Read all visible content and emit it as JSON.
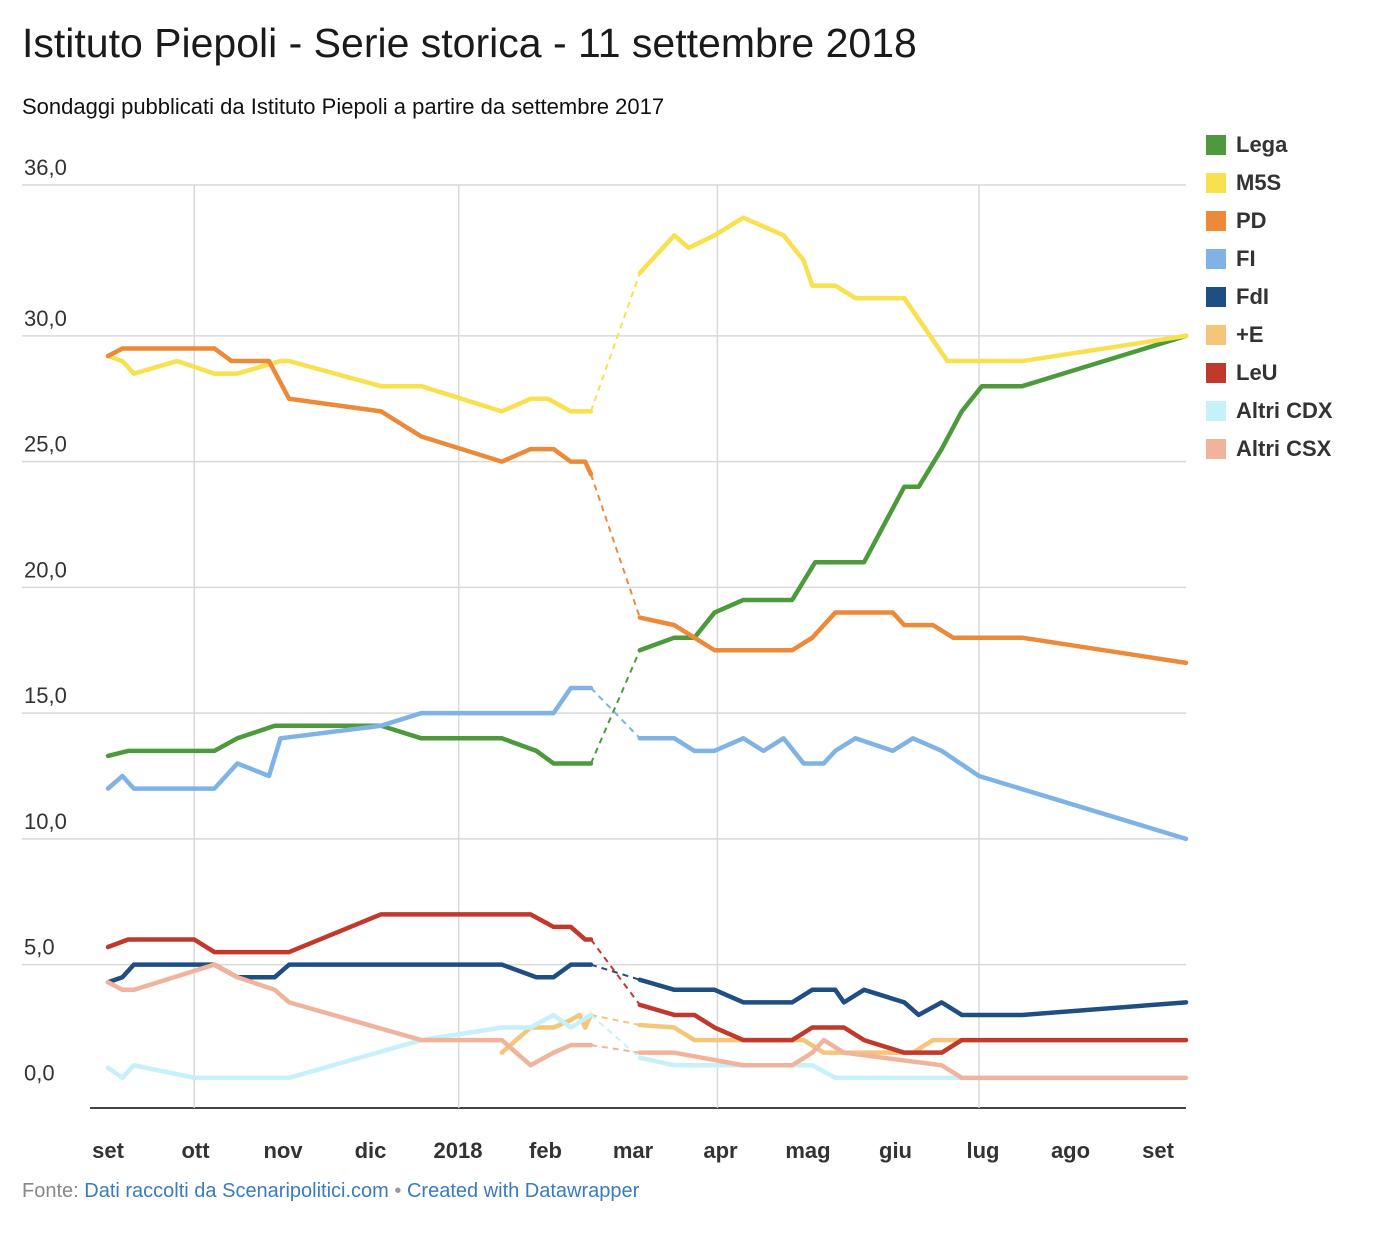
{
  "title": "Istituto Piepoli - Serie storica - 11 settembre 2018",
  "subtitle": "Sondaggi pubblicati da Istituto Piepoli a partire da settembre 2017",
  "footer": {
    "prefix": "Fonte:",
    "source_link": "Dati raccolti da Scenaripolitici.com",
    "separator": "•",
    "credit_link": "Created with Datawrapper"
  },
  "chart_data": {
    "type": "line",
    "title": "Istituto Piepoli - Serie storica - 11 settembre 2018",
    "xlabel": "",
    "ylabel": "",
    "ylim": [
      -0.7,
      36.0
    ],
    "xlim": [
      "2017-09-01",
      "2018-09-11"
    ],
    "grid": true,
    "legend_position": "right",
    "y_ticks": [
      "36,0",
      "30,0",
      "25,0",
      "20,0",
      "15,0",
      "10,0",
      "5,0",
      "0,0"
    ],
    "y_tick_values": [
      36,
      30,
      25,
      20,
      15,
      10,
      5,
      0
    ],
    "x_ticks": [
      "set",
      "ott",
      "nov",
      "dic",
      "2018",
      "feb",
      "mar",
      "apr",
      "mag",
      "giu",
      "lug",
      "ago",
      "set"
    ],
    "x_gridlines": [
      "2017-10-01",
      "2018-01-01",
      "2018-04-01",
      "2018-07-01"
    ],
    "gap": [
      "2018-02-16",
      "2018-03-05"
    ],
    "series": [
      {
        "name": "Lega",
        "color": "#4c9a3b",
        "points": [
          [
            "2017-09-01",
            13.3
          ],
          [
            "2017-09-08",
            13.5
          ],
          [
            "2017-10-08",
            13.5
          ],
          [
            "2017-10-16",
            14.0
          ],
          [
            "2017-10-29",
            14.5
          ],
          [
            "2017-12-05",
            14.5
          ],
          [
            "2017-12-19",
            14.0
          ],
          [
            "2018-01-16",
            14.0
          ],
          [
            "2018-01-28",
            13.5
          ],
          [
            "2018-02-03",
            13.0
          ],
          [
            "2018-02-16",
            13.0
          ],
          [
            "2018-03-05",
            17.5
          ],
          [
            "2018-03-17",
            18.0
          ],
          [
            "2018-03-24",
            18.0
          ],
          [
            "2018-03-31",
            19.0
          ],
          [
            "2018-04-10",
            19.5
          ],
          [
            "2018-04-27",
            19.5
          ],
          [
            "2018-05-05",
            21.0
          ],
          [
            "2018-05-22",
            21.0
          ],
          [
            "2018-06-05",
            24.0
          ],
          [
            "2018-06-10",
            24.0
          ],
          [
            "2018-06-18",
            25.5
          ],
          [
            "2018-06-25",
            27.0
          ],
          [
            "2018-07-02",
            28.0
          ],
          [
            "2018-07-16",
            28.0
          ],
          [
            "2018-09-11",
            30.0
          ]
        ]
      },
      {
        "name": "M5S",
        "color": "#f8e04e",
        "points": [
          [
            "2017-09-01",
            29.2
          ],
          [
            "2017-09-06",
            29.0
          ],
          [
            "2017-09-10",
            28.5
          ],
          [
            "2017-09-25",
            29.0
          ],
          [
            "2017-10-08",
            28.5
          ],
          [
            "2017-10-16",
            28.5
          ],
          [
            "2017-10-31",
            29.0
          ],
          [
            "2017-11-03",
            29.0
          ],
          [
            "2017-12-05",
            28.0
          ],
          [
            "2017-12-19",
            28.0
          ],
          [
            "2018-01-16",
            27.0
          ],
          [
            "2018-01-26",
            27.5
          ],
          [
            "2018-02-01",
            27.5
          ],
          [
            "2018-02-09",
            27.0
          ],
          [
            "2018-02-16",
            27.0
          ],
          [
            "2018-03-05",
            32.5
          ],
          [
            "2018-03-17",
            34.0
          ],
          [
            "2018-03-22",
            33.5
          ],
          [
            "2018-03-31",
            34.0
          ],
          [
            "2018-04-10",
            34.7
          ],
          [
            "2018-04-24",
            34.0
          ],
          [
            "2018-05-01",
            33.0
          ],
          [
            "2018-05-04",
            32.0
          ],
          [
            "2018-05-12",
            32.0
          ],
          [
            "2018-05-19",
            31.5
          ],
          [
            "2018-06-05",
            31.5
          ],
          [
            "2018-06-20",
            29.0
          ],
          [
            "2018-07-01",
            29.0
          ],
          [
            "2018-07-16",
            29.0
          ],
          [
            "2018-09-11",
            30.0
          ]
        ]
      },
      {
        "name": "PD",
        "color": "#ec8a3a",
        "points": [
          [
            "2017-09-01",
            29.2
          ],
          [
            "2017-09-06",
            29.5
          ],
          [
            "2017-09-10",
            29.5
          ],
          [
            "2017-10-08",
            29.5
          ],
          [
            "2017-10-14",
            29.0
          ],
          [
            "2017-10-27",
            29.0
          ],
          [
            "2017-11-03",
            27.5
          ],
          [
            "2017-12-05",
            27.0
          ],
          [
            "2017-12-19",
            26.0
          ],
          [
            "2018-01-16",
            25.0
          ],
          [
            "2018-01-26",
            25.5
          ],
          [
            "2018-02-03",
            25.5
          ],
          [
            "2018-02-09",
            25.0
          ],
          [
            "2018-02-14",
            25.0
          ],
          [
            "2018-02-16",
            24.5
          ],
          [
            "2018-03-05",
            18.8
          ],
          [
            "2018-03-17",
            18.5
          ],
          [
            "2018-03-24",
            18.0
          ],
          [
            "2018-03-31",
            17.5
          ],
          [
            "2018-04-10",
            17.5
          ],
          [
            "2018-04-27",
            17.5
          ],
          [
            "2018-05-04",
            18.0
          ],
          [
            "2018-05-08",
            18.5
          ],
          [
            "2018-05-12",
            19.0
          ],
          [
            "2018-06-01",
            19.0
          ],
          [
            "2018-06-05",
            18.5
          ],
          [
            "2018-06-15",
            18.5
          ],
          [
            "2018-06-22",
            18.0
          ],
          [
            "2018-07-16",
            18.0
          ],
          [
            "2018-09-11",
            17.0
          ]
        ]
      },
      {
        "name": "FI",
        "color": "#7fb2e5",
        "points": [
          [
            "2017-09-01",
            12.0
          ],
          [
            "2017-09-06",
            12.5
          ],
          [
            "2017-09-10",
            12.0
          ],
          [
            "2017-10-08",
            12.0
          ],
          [
            "2017-10-16",
            13.0
          ],
          [
            "2017-10-27",
            12.5
          ],
          [
            "2017-10-31",
            14.0
          ],
          [
            "2017-12-05",
            14.5
          ],
          [
            "2017-12-19",
            15.0
          ],
          [
            "2018-02-03",
            15.0
          ],
          [
            "2018-02-09",
            16.0
          ],
          [
            "2018-02-16",
            16.0
          ],
          [
            "2018-03-05",
            14.0
          ],
          [
            "2018-03-17",
            14.0
          ],
          [
            "2018-03-24",
            13.5
          ],
          [
            "2018-03-31",
            13.5
          ],
          [
            "2018-04-10",
            14.0
          ],
          [
            "2018-04-17",
            13.5
          ],
          [
            "2018-04-24",
            14.0
          ],
          [
            "2018-05-01",
            13.0
          ],
          [
            "2018-05-08",
            13.0
          ],
          [
            "2018-05-12",
            13.5
          ],
          [
            "2018-05-19",
            14.0
          ],
          [
            "2018-06-01",
            13.5
          ],
          [
            "2018-06-08",
            14.0
          ],
          [
            "2018-06-18",
            13.5
          ],
          [
            "2018-07-01",
            12.5
          ],
          [
            "2018-09-11",
            10.0
          ]
        ]
      },
      {
        "name": "FdI",
        "color": "#1f4e85",
        "points": [
          [
            "2017-09-01",
            4.3
          ],
          [
            "2017-09-06",
            4.5
          ],
          [
            "2017-09-10",
            5.0
          ],
          [
            "2017-10-08",
            5.0
          ],
          [
            "2017-10-16",
            4.5
          ],
          [
            "2017-10-29",
            4.5
          ],
          [
            "2017-11-03",
            5.0
          ],
          [
            "2018-01-16",
            5.0
          ],
          [
            "2018-01-28",
            4.5
          ],
          [
            "2018-02-03",
            4.5
          ],
          [
            "2018-02-09",
            5.0
          ],
          [
            "2018-02-16",
            5.0
          ],
          [
            "2018-03-05",
            4.4
          ],
          [
            "2018-03-17",
            4.0
          ],
          [
            "2018-03-31",
            4.0
          ],
          [
            "2018-04-10",
            3.5
          ],
          [
            "2018-04-27",
            3.5
          ],
          [
            "2018-05-04",
            4.0
          ],
          [
            "2018-05-12",
            4.0
          ],
          [
            "2018-05-15",
            3.5
          ],
          [
            "2018-05-22",
            4.0
          ],
          [
            "2018-06-05",
            3.5
          ],
          [
            "2018-06-10",
            3.0
          ],
          [
            "2018-06-18",
            3.5
          ],
          [
            "2018-06-25",
            3.0
          ],
          [
            "2018-07-16",
            3.0
          ],
          [
            "2018-09-11",
            3.5
          ]
        ]
      },
      {
        "name": "+E",
        "color": "#f5c57a",
        "points": [
          [
            "2018-01-16",
            1.5
          ],
          [
            "2018-01-26",
            2.5
          ],
          [
            "2018-02-03",
            2.5
          ],
          [
            "2018-02-09",
            2.8
          ],
          [
            "2018-02-12",
            3.0
          ],
          [
            "2018-02-14",
            2.5
          ],
          [
            "2018-02-16",
            3.0
          ],
          [
            "2018-03-05",
            2.6
          ],
          [
            "2018-03-17",
            2.5
          ],
          [
            "2018-03-24",
            2.0
          ],
          [
            "2018-04-27",
            2.0
          ],
          [
            "2018-05-01",
            2.0
          ],
          [
            "2018-05-08",
            1.5
          ],
          [
            "2018-06-08",
            1.5
          ],
          [
            "2018-06-15",
            2.0
          ],
          [
            "2018-06-25",
            2.0
          ]
        ]
      },
      {
        "name": "LeU",
        "color": "#c0392b",
        "points": [
          [
            "2017-09-01",
            5.7
          ],
          [
            "2017-09-08",
            6.0
          ],
          [
            "2017-10-01",
            6.0
          ],
          [
            "2017-10-08",
            5.5
          ],
          [
            "2017-11-03",
            5.5
          ],
          [
            "2017-12-05",
            7.0
          ],
          [
            "2018-01-26",
            7.0
          ],
          [
            "2018-02-03",
            6.5
          ],
          [
            "2018-02-09",
            6.5
          ],
          [
            "2018-02-14",
            6.0
          ],
          [
            "2018-02-16",
            6.0
          ],
          [
            "2018-03-05",
            3.4
          ],
          [
            "2018-03-17",
            3.0
          ],
          [
            "2018-03-24",
            3.0
          ],
          [
            "2018-03-31",
            2.5
          ],
          [
            "2018-04-10",
            2.0
          ],
          [
            "2018-04-27",
            2.0
          ],
          [
            "2018-05-04",
            2.5
          ],
          [
            "2018-05-15",
            2.5
          ],
          [
            "2018-05-22",
            2.0
          ],
          [
            "2018-06-05",
            1.5
          ],
          [
            "2018-06-18",
            1.5
          ],
          [
            "2018-06-25",
            2.0
          ],
          [
            "2018-09-11",
            2.0
          ]
        ]
      },
      {
        "name": "Altri CDX",
        "color": "#c6f0fa",
        "points": [
          [
            "2017-09-01",
            0.9
          ],
          [
            "2017-09-06",
            0.5
          ],
          [
            "2017-09-10",
            1.0
          ],
          [
            "2017-10-01",
            0.5
          ],
          [
            "2017-11-03",
            0.5
          ],
          [
            "2017-12-19",
            2.0
          ],
          [
            "2018-01-16",
            2.5
          ],
          [
            "2018-01-26",
            2.5
          ],
          [
            "2018-02-03",
            3.0
          ],
          [
            "2018-02-09",
            2.5
          ],
          [
            "2018-02-16",
            3.0
          ],
          [
            "2018-03-05",
            1.3
          ],
          [
            "2018-03-17",
            1.0
          ],
          [
            "2018-05-04",
            1.0
          ],
          [
            "2018-05-12",
            0.5
          ],
          [
            "2018-06-25",
            0.5
          ]
        ]
      },
      {
        "name": "Altri CSX",
        "color": "#f0b49c",
        "points": [
          [
            "2017-09-01",
            4.3
          ],
          [
            "2017-09-06",
            4.0
          ],
          [
            "2017-09-10",
            4.0
          ],
          [
            "2017-10-08",
            5.0
          ],
          [
            "2017-10-16",
            4.5
          ],
          [
            "2017-10-29",
            4.0
          ],
          [
            "2017-11-03",
            3.5
          ],
          [
            "2017-12-19",
            2.0
          ],
          [
            "2018-01-16",
            2.0
          ],
          [
            "2018-01-26",
            1.0
          ],
          [
            "2018-02-03",
            1.5
          ],
          [
            "2018-02-09",
            1.8
          ],
          [
            "2018-02-16",
            1.8
          ],
          [
            "2018-03-05",
            1.5
          ],
          [
            "2018-03-17",
            1.5
          ],
          [
            "2018-04-10",
            1.0
          ],
          [
            "2018-04-27",
            1.0
          ],
          [
            "2018-05-04",
            1.5
          ],
          [
            "2018-05-08",
            2.0
          ],
          [
            "2018-05-15",
            1.5
          ],
          [
            "2018-06-18",
            1.0
          ],
          [
            "2018-06-25",
            0.5
          ],
          [
            "2018-09-11",
            0.5
          ]
        ]
      }
    ]
  }
}
